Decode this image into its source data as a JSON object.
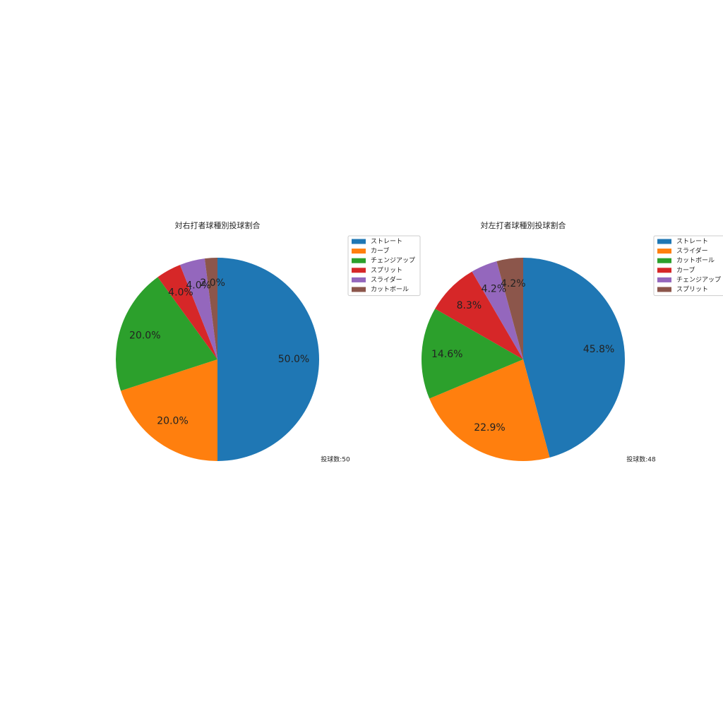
{
  "chart_data": [
    {
      "type": "pie",
      "title": "対右打者球種別投球割合",
      "annotation": "投球数:50",
      "categories": [
        "ストレート",
        "カーブ",
        "チェンジアップ",
        "スプリット",
        "スライダー",
        "カットボール"
      ],
      "values": [
        50,
        20,
        20,
        4,
        4,
        2
      ],
      "value_labels": [
        "50.0%",
        "20.0%",
        "20.0%",
        "4.0%",
        "4.0%",
        "2.0%"
      ],
      "colors": [
        "#1f77b4",
        "#ff7f0e",
        "#2ca02c",
        "#d62728",
        "#9467bd",
        "#8c564b"
      ],
      "legend": "upper right"
    },
    {
      "type": "pie",
      "title": "対左打者球種別投球割合",
      "annotation": "投球数:48",
      "categories": [
        "ストレート",
        "スライダー",
        "カットボール",
        "カーブ",
        "チェンジアップ",
        "スプリット"
      ],
      "values": [
        45.8,
        22.9,
        14.6,
        8.3,
        4.2,
        4.2
      ],
      "value_labels": [
        "45.8%",
        "22.9%",
        "14.6%",
        "8.3%",
        "4.2%",
        "4.2%"
      ],
      "colors": [
        "#1f77b4",
        "#ff7f0e",
        "#2ca02c",
        "#d62728",
        "#9467bd",
        "#8c564b"
      ],
      "legend": "upper right"
    }
  ]
}
